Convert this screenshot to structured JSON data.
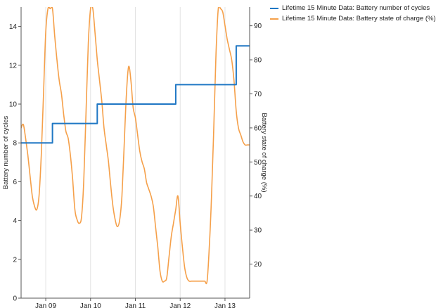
{
  "chart_data": {
    "type": "line",
    "x_axis": {
      "ticks": [
        "Jan 09",
        "Jan 10",
        "Jan 11",
        "Jan 12",
        "Jan 13"
      ],
      "tick_positions_days": [
        9,
        10,
        11,
        12,
        13
      ],
      "range_days": [
        8.45,
        13.55
      ]
    },
    "y_axis_left": {
      "label": "Battery number of cycles",
      "range": [
        0,
        15
      ],
      "ticks": [
        0,
        2,
        4,
        6,
        8,
        10,
        12,
        14
      ]
    },
    "y_axis_right": {
      "label": "Battery state of charge (%)",
      "range": [
        10,
        95.5
      ],
      "ticks": [
        20,
        30,
        40,
        50,
        60,
        70,
        80,
        90
      ]
    },
    "grid": "vertical",
    "legend_position": "top-right",
    "series": [
      {
        "name": "Lifetime 15 Minute Data: Battery number of cycles",
        "axis": "left",
        "color": "#1f77c4",
        "step": true,
        "x": [
          8.45,
          9.15,
          9.15,
          10.15,
          10.15,
          11.9,
          11.9,
          13.25,
          13.25,
          13.55
        ],
        "y": [
          8,
          8,
          9,
          9,
          10,
          10,
          11,
          11,
          13,
          13
        ]
      },
      {
        "name": "Lifetime 15 Minute Data: Battery state of charge (%)",
        "axis": "right",
        "color": "#f5a04a",
        "step": false,
        "x": [
          8.45,
          8.5,
          8.55,
          8.6,
          8.65,
          8.7,
          8.75,
          8.8,
          8.85,
          8.9,
          8.95,
          9.0,
          9.05,
          9.1,
          9.15,
          9.2,
          9.25,
          9.3,
          9.35,
          9.4,
          9.45,
          9.5,
          9.55,
          9.6,
          9.65,
          9.7,
          9.75,
          9.8,
          9.85,
          9.9,
          9.95,
          10.0,
          10.05,
          10.1,
          10.15,
          10.2,
          10.25,
          10.3,
          10.35,
          10.4,
          10.45,
          10.5,
          10.55,
          10.6,
          10.65,
          10.7,
          10.75,
          10.8,
          10.85,
          10.9,
          10.95,
          11.0,
          11.05,
          11.1,
          11.15,
          11.2,
          11.25,
          11.3,
          11.35,
          11.4,
          11.45,
          11.5,
          11.55,
          11.6,
          11.65,
          11.7,
          11.75,
          11.8,
          11.85,
          11.9,
          11.95,
          12.0,
          12.05,
          12.1,
          12.15,
          12.2,
          12.25,
          12.3,
          12.35,
          12.4,
          12.45,
          12.5,
          12.55,
          12.6,
          12.65,
          12.7,
          12.75,
          12.8,
          12.85,
          12.9,
          12.95,
          13.0,
          13.05,
          13.1,
          13.15,
          13.2,
          13.25,
          13.3,
          13.35,
          13.4,
          13.45,
          13.5,
          13.55
        ],
        "y": [
          60,
          61,
          57,
          52,
          46,
          40,
          37,
          36,
          40,
          52,
          70,
          88,
          95,
          95,
          95,
          87,
          80,
          74,
          70,
          64,
          59,
          57,
          52,
          45,
          36,
          33,
          32,
          34,
          45,
          65,
          85,
          95,
          95,
          88,
          80,
          74,
          68,
          60,
          55,
          50,
          43,
          37,
          33,
          31,
          33,
          40,
          55,
          70,
          78,
          74,
          66,
          63,
          58,
          53,
          50,
          48,
          44,
          42,
          40,
          37,
          31,
          25,
          18,
          15,
          15,
          16,
          22,
          28,
          32,
          36,
          40,
          32,
          25,
          19,
          16,
          15,
          15,
          15,
          15,
          15,
          15,
          15,
          15,
          15,
          25,
          40,
          60,
          82,
          95,
          95,
          94,
          90,
          86,
          83,
          80,
          74,
          65,
          60,
          58,
          56,
          55,
          55,
          55
        ]
      }
    ]
  }
}
